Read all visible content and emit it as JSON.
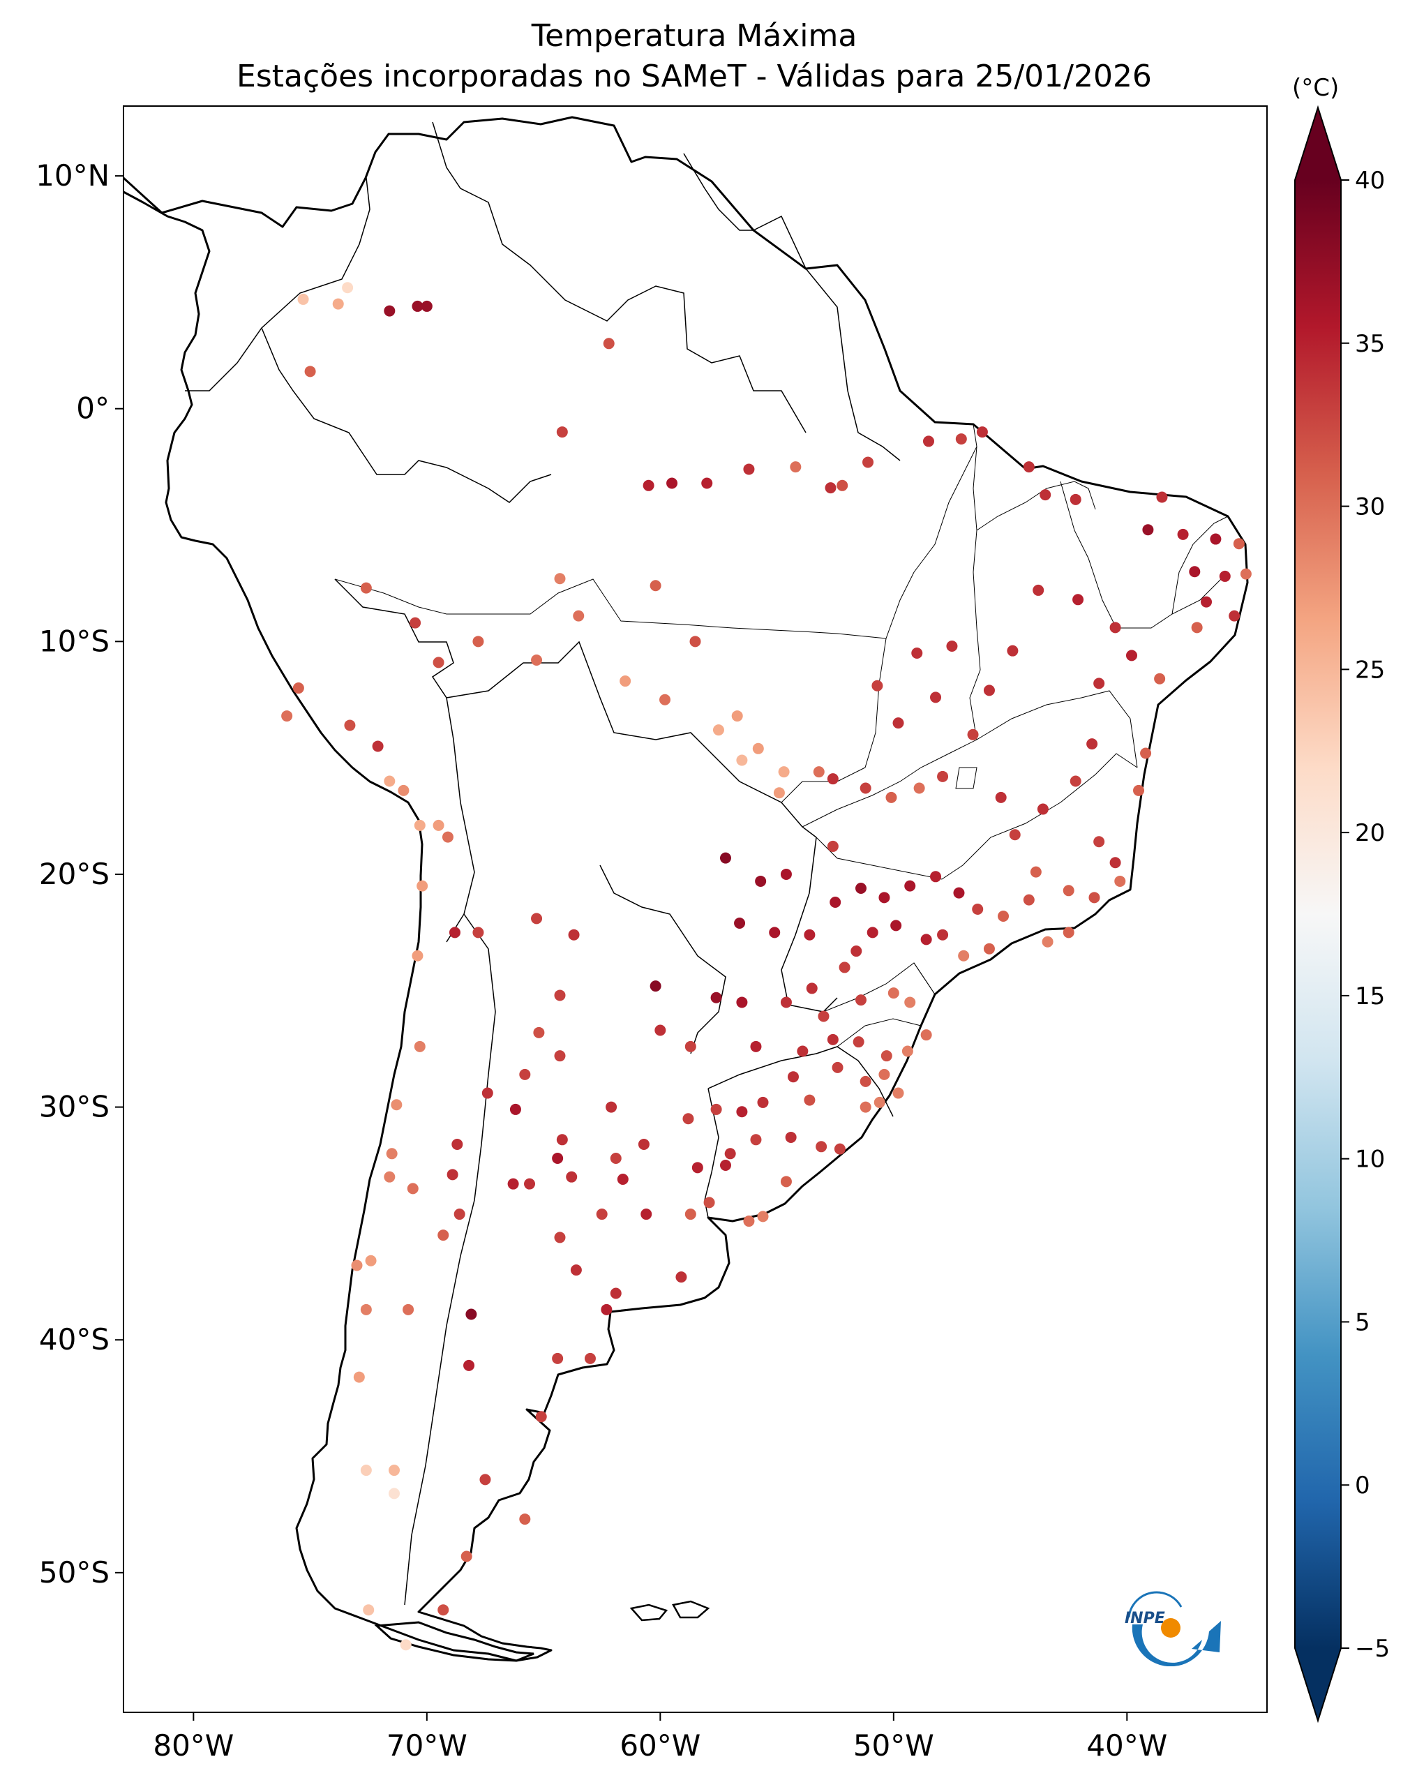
{
  "title": {
    "line1": "Temperatura Máxima",
    "line2": "Estações incorporadas no SAMeT - Válidas para 25/01/2026"
  },
  "map": {
    "lon_range": [
      -83,
      -34
    ],
    "lat_range": [
      -56,
      13
    ],
    "lat_ticks": [
      {
        "value": 10,
        "label": "10°N"
      },
      {
        "value": 0,
        "label": "0°"
      },
      {
        "value": -10,
        "label": "10°S"
      },
      {
        "value": -20,
        "label": "20°S"
      },
      {
        "value": -30,
        "label": "30°S"
      },
      {
        "value": -40,
        "label": "40°S"
      },
      {
        "value": -50,
        "label": "50°S"
      }
    ],
    "lon_ticks": [
      {
        "value": -80,
        "label": "80°W"
      },
      {
        "value": -70,
        "label": "70°W"
      },
      {
        "value": -60,
        "label": "60°W"
      },
      {
        "value": -50,
        "label": "50°W"
      },
      {
        "value": -40,
        "label": "40°W"
      }
    ]
  },
  "colorbar": {
    "unit": "(°C)",
    "min": -5,
    "max": 40,
    "ticks": [
      "-5",
      "0",
      "5",
      "10",
      "15",
      "20",
      "25",
      "30",
      "35",
      "40"
    ],
    "colormap": [
      "#053061",
      "#2166ac",
      "#4393c3",
      "#92c5de",
      "#d1e5f0",
      "#f7f7f7",
      "#fddbc7",
      "#f4a582",
      "#d6604d",
      "#b2182b",
      "#67001f"
    ]
  },
  "logo": {
    "text": "INPE"
  },
  "stations": [
    [
      -75.3,
      4.7,
      24
    ],
    [
      -73.8,
      4.5,
      26
    ],
    [
      -73.4,
      5.2,
      22
    ],
    [
      -71.6,
      4.2,
      37
    ],
    [
      -70.4,
      4.4,
      37
    ],
    [
      -70.0,
      4.4,
      37
    ],
    [
      -75.0,
      1.6,
      31
    ],
    [
      -62.2,
      2.8,
      32
    ],
    [
      -64.2,
      -1.0,
      33
    ],
    [
      -60.5,
      -3.3,
      35
    ],
    [
      -59.5,
      -3.2,
      36
    ],
    [
      -58.0,
      -3.2,
      35
    ],
    [
      -56.2,
      -2.6,
      34
    ],
    [
      -54.2,
      -2.5,
      30
    ],
    [
      -52.7,
      -3.4,
      34
    ],
    [
      -52.2,
      -3.3,
      32
    ],
    [
      -51.1,
      -2.3,
      33
    ],
    [
      -48.5,
      -1.4,
      34
    ],
    [
      -47.1,
      -1.3,
      33
    ],
    [
      -46.2,
      -1.0,
      34
    ],
    [
      -44.2,
      -2.5,
      34
    ],
    [
      -43.5,
      -3.7,
      34
    ],
    [
      -42.2,
      -3.9,
      34
    ],
    [
      -39.1,
      -5.2,
      37
    ],
    [
      -38.5,
      -3.8,
      34
    ],
    [
      -37.6,
      -5.4,
      35
    ],
    [
      -36.2,
      -5.6,
      36
    ],
    [
      -35.2,
      -5.8,
      31
    ],
    [
      -37.1,
      -7.0,
      36
    ],
    [
      -35.8,
      -7.2,
      35
    ],
    [
      -34.9,
      -7.1,
      30
    ],
    [
      -36.6,
      -8.3,
      35
    ],
    [
      -35.4,
      -8.9,
      34
    ],
    [
      -37.0,
      -9.4,
      31
    ],
    [
      -38.6,
      -11.6,
      31
    ],
    [
      -40.5,
      -9.4,
      34
    ],
    [
      -39.8,
      -10.6,
      35
    ],
    [
      -41.2,
      -11.8,
      34
    ],
    [
      -42.1,
      -8.2,
      35
    ],
    [
      -43.8,
      -7.8,
      34
    ],
    [
      -44.9,
      -10.4,
      34
    ],
    [
      -45.9,
      -12.1,
      34
    ],
    [
      -47.5,
      -10.2,
      34
    ],
    [
      -48.2,
      -12.4,
      34
    ],
    [
      -49.0,
      -10.5,
      34
    ],
    [
      -50.7,
      -11.9,
      33
    ],
    [
      -49.8,
      -13.5,
      34
    ],
    [
      -46.6,
      -14.0,
      33
    ],
    [
      -47.9,
      -15.8,
      33
    ],
    [
      -48.9,
      -16.3,
      30
    ],
    [
      -50.1,
      -16.7,
      31
    ],
    [
      -51.2,
      -16.3,
      33
    ],
    [
      -52.6,
      -15.9,
      34
    ],
    [
      -54.7,
      -15.6,
      26
    ],
    [
      -55.8,
      -14.6,
      27
    ],
    [
      -56.5,
      -15.1,
      25
    ],
    [
      -57.5,
      -13.8,
      26
    ],
    [
      -59.8,
      -12.5,
      30
    ],
    [
      -61.5,
      -11.7,
      27
    ],
    [
      -63.5,
      -8.9,
      30
    ],
    [
      -65.3,
      -10.8,
      30
    ],
    [
      -67.8,
      -10.0,
      31
    ],
    [
      -69.5,
      -10.9,
      32
    ],
    [
      -70.5,
      -9.2,
      33
    ],
    [
      -72.6,
      -7.7,
      31
    ],
    [
      -64.3,
      -7.3,
      29
    ],
    [
      -60.2,
      -7.6,
      31
    ],
    [
      -58.5,
      -10.0,
      32
    ],
    [
      -56.7,
      -13.2,
      27
    ],
    [
      -54.9,
      -16.5,
      27
    ],
    [
      -53.2,
      -15.6,
      30
    ],
    [
      -52.6,
      -18.8,
      33
    ],
    [
      -54.6,
      -20.0,
      36
    ],
    [
      -55.7,
      -20.3,
      37
    ],
    [
      -57.2,
      -19.3,
      38
    ],
    [
      -56.6,
      -22.1,
      37
    ],
    [
      -55.1,
      -22.5,
      36
    ],
    [
      -53.6,
      -22.6,
      35
    ],
    [
      -52.5,
      -21.2,
      36
    ],
    [
      -51.4,
      -20.6,
      37
    ],
    [
      -50.4,
      -21.0,
      36
    ],
    [
      -49.3,
      -20.5,
      36
    ],
    [
      -48.2,
      -20.1,
      35
    ],
    [
      -47.2,
      -20.8,
      36
    ],
    [
      -46.4,
      -21.5,
      33
    ],
    [
      -45.3,
      -21.8,
      31
    ],
    [
      -44.2,
      -21.1,
      32
    ],
    [
      -43.4,
      -22.9,
      29
    ],
    [
      -42.5,
      -22.5,
      31
    ],
    [
      -41.4,
      -21.0,
      32
    ],
    [
      -40.5,
      -19.5,
      34
    ],
    [
      -40.3,
      -20.3,
      30
    ],
    [
      -43.9,
      -19.9,
      31
    ],
    [
      -44.8,
      -18.3,
      33
    ],
    [
      -45.4,
      -16.7,
      34
    ],
    [
      -43.6,
      -17.2,
      34
    ],
    [
      -42.2,
      -16.0,
      33
    ],
    [
      -41.5,
      -14.4,
      34
    ],
    [
      -39.2,
      -14.8,
      31
    ],
    [
      -39.5,
      -16.4,
      31
    ],
    [
      -41.2,
      -18.6,
      33
    ],
    [
      -42.5,
      -20.7,
      31
    ],
    [
      -45.9,
      -23.2,
      31
    ],
    [
      -47.0,
      -23.5,
      29
    ],
    [
      -47.9,
      -22.6,
      34
    ],
    [
      -48.6,
      -22.8,
      35
    ],
    [
      -49.9,
      -22.2,
      36
    ],
    [
      -50.9,
      -22.5,
      35
    ],
    [
      -51.6,
      -23.3,
      34
    ],
    [
      -52.1,
      -24.0,
      33
    ],
    [
      -53.5,
      -24.9,
      34
    ],
    [
      -54.6,
      -25.5,
      34
    ],
    [
      -53.0,
      -26.1,
      33
    ],
    [
      -51.4,
      -25.4,
      33
    ],
    [
      -50.0,
      -25.1,
      30
    ],
    [
      -49.3,
      -25.5,
      29
    ],
    [
      -48.6,
      -26.9,
      30
    ],
    [
      -49.4,
      -27.6,
      29
    ],
    [
      -50.3,
      -27.8,
      32
    ],
    [
      -51.5,
      -27.2,
      33
    ],
    [
      -52.6,
      -27.1,
      34
    ],
    [
      -53.9,
      -27.6,
      34
    ],
    [
      -54.3,
      -28.7,
      34
    ],
    [
      -55.6,
      -29.8,
      34
    ],
    [
      -56.5,
      -30.2,
      35
    ],
    [
      -57.0,
      -32.0,
      34
    ],
    [
      -55.9,
      -31.4,
      33
    ],
    [
      -54.4,
      -31.3,
      34
    ],
    [
      -53.1,
      -31.7,
      33
    ],
    [
      -52.3,
      -31.8,
      33
    ],
    [
      -51.2,
      -30.0,
      30
    ],
    [
      -50.6,
      -29.8,
      29
    ],
    [
      -49.8,
      -29.4,
      29
    ],
    [
      -50.4,
      -28.6,
      30
    ],
    [
      -51.2,
      -28.9,
      32
    ],
    [
      -52.4,
      -28.3,
      33
    ],
    [
      -53.6,
      -29.7,
      32
    ],
    [
      -54.6,
      -33.2,
      31
    ],
    [
      -55.6,
      -34.7,
      29
    ],
    [
      -56.2,
      -34.9,
      30
    ],
    [
      -57.9,
      -34.1,
      32
    ],
    [
      -57.2,
      -32.5,
      35
    ],
    [
      -58.4,
      -32.6,
      35
    ],
    [
      -58.7,
      -34.6,
      31
    ],
    [
      -60.7,
      -31.6,
      34
    ],
    [
      -61.6,
      -33.1,
      35
    ],
    [
      -60.6,
      -34.6,
      35
    ],
    [
      -59.1,
      -37.3,
      34
    ],
    [
      -61.9,
      -38.0,
      34
    ],
    [
      -62.3,
      -38.7,
      35
    ],
    [
      -63.6,
      -37.0,
      34
    ],
    [
      -64.3,
      -35.6,
      33
    ],
    [
      -63.8,
      -33.0,
      34
    ],
    [
      -64.2,
      -31.4,
      34
    ],
    [
      -65.6,
      -33.3,
      34
    ],
    [
      -66.3,
      -33.3,
      35
    ],
    [
      -64.4,
      -32.2,
      36
    ],
    [
      -65.8,
      -28.6,
      33
    ],
    [
      -64.3,
      -27.8,
      33
    ],
    [
      -65.2,
      -26.8,
      32
    ],
    [
      -64.3,
      -25.2,
      33
    ],
    [
      -63.7,
      -22.6,
      34
    ],
    [
      -65.3,
      -21.9,
      33
    ],
    [
      -60.2,
      -24.8,
      38
    ],
    [
      -60.0,
      -26.7,
      34
    ],
    [
      -58.7,
      -27.4,
      33
    ],
    [
      -56.5,
      -25.5,
      36
    ],
    [
      -57.6,
      -25.3,
      37
    ],
    [
      -55.9,
      -27.4,
      35
    ],
    [
      -58.8,
      -30.5,
      33
    ],
    [
      -57.6,
      -30.1,
      33
    ],
    [
      -62.1,
      -30.0,
      34
    ],
    [
      -61.9,
      -32.2,
      33
    ],
    [
      -62.5,
      -34.6,
      33
    ],
    [
      -68.9,
      -32.9,
      34
    ],
    [
      -68.7,
      -31.6,
      34
    ],
    [
      -67.4,
      -29.4,
      34
    ],
    [
      -66.2,
      -30.1,
      36
    ],
    [
      -68.6,
      -34.6,
      33
    ],
    [
      -69.3,
      -35.5,
      31
    ],
    [
      -68.1,
      -38.9,
      38
    ],
    [
      -68.2,
      -41.1,
      35
    ],
    [
      -65.1,
      -43.3,
      33
    ],
    [
      -64.4,
      -40.8,
      33
    ],
    [
      -63.0,
      -40.8,
      33
    ],
    [
      -67.5,
      -46.0,
      33
    ],
    [
      -65.8,
      -47.7,
      31
    ],
    [
      -69.3,
      -51.6,
      32
    ],
    [
      -68.3,
      -49.3,
      31
    ],
    [
      -70.8,
      -38.7,
      30
    ],
    [
      -72.4,
      -36.6,
      27
    ],
    [
      -71.6,
      -33.0,
      29
    ],
    [
      -70.6,
      -33.5,
      30
    ],
    [
      -71.5,
      -32.0,
      29
    ],
    [
      -71.3,
      -29.9,
      28
    ],
    [
      -70.3,
      -27.4,
      29
    ],
    [
      -70.4,
      -23.5,
      27
    ],
    [
      -70.2,
      -20.5,
      27
    ],
    [
      -69.5,
      -17.9,
      27
    ],
    [
      -71.0,
      -16.4,
      28
    ],
    [
      -71.6,
      -16.0,
      26
    ],
    [
      -72.1,
      -14.5,
      34
    ],
    [
      -75.5,
      -12.0,
      31
    ],
    [
      -76.0,
      -13.2,
      30
    ],
    [
      -73.3,
      -13.6,
      32
    ],
    [
      -69.1,
      -18.4,
      30
    ],
    [
      -67.8,
      -22.5,
      33
    ],
    [
      -68.8,
      -22.5,
      35
    ],
    [
      -70.3,
      -17.9,
      26
    ],
    [
      -72.9,
      -41.6,
      27
    ],
    [
      -72.6,
      -45.6,
      23
    ],
    [
      -71.4,
      -45.6,
      25
    ],
    [
      -70.9,
      -53.1,
      22
    ],
    [
      -72.5,
      -51.6,
      24
    ],
    [
      -73.0,
      -36.8,
      28
    ],
    [
      -72.6,
      -38.7,
      29
    ],
    [
      -71.4,
      -46.6,
      21
    ]
  ]
}
